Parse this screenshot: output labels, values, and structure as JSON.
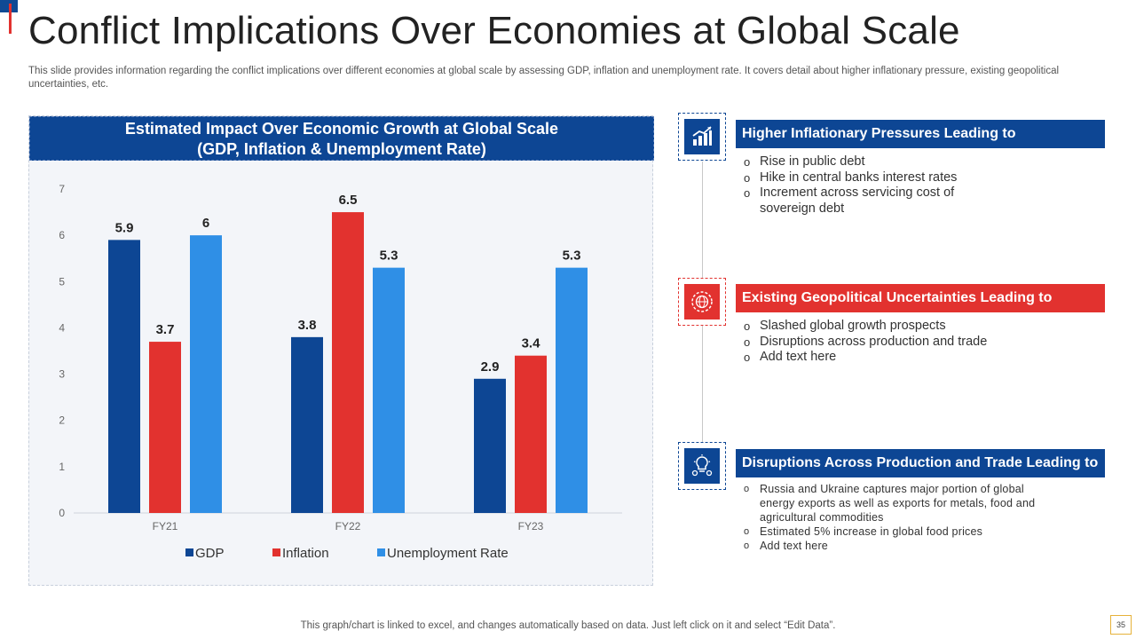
{
  "page": {
    "title": "Conflict Implications Over Economies at Global Scale",
    "subtitle": "This slide provides information regarding the conflict implications over different economies at global scale by assessing GDP, inflation and unemployment rate. It covers detail about higher inflationary pressure, existing geopolitical uncertainties, etc.",
    "footer": "This graph/chart is linked to excel, and changes automatically based on data. Just left click on it and select “Edit Data”.",
    "page_number": "35"
  },
  "chart_header": {
    "line1": "Estimated Impact Over Economic Growth at Global Scale",
    "line2": "(GDP, Inflation & Unemployment Rate)"
  },
  "chart_data": {
    "type": "bar",
    "title": "Estimated Impact Over Economic Growth at Global Scale (GDP, Inflation & Unemployment Rate)",
    "categories": [
      "FY21",
      "FY22",
      "FY23"
    ],
    "series": [
      {
        "name": "GDP",
        "values": [
          5.9,
          3.8,
          2.9
        ],
        "color": "#0d4694"
      },
      {
        "name": "Inflation",
        "values": [
          3.7,
          6.5,
          3.4
        ],
        "color": "#e2322f"
      },
      {
        "name": "Unemployment Rate",
        "values": [
          6,
          5.3,
          5.3
        ],
        "color": "#2f8fe6"
      }
    ],
    "ylim": [
      0,
      7
    ],
    "yticks": [
      "0",
      "1",
      "2",
      "3",
      "4",
      "5",
      "6",
      "7"
    ],
    "xlabel": "",
    "ylabel": "",
    "legend": "bottom"
  },
  "sections": [
    {
      "heading": "Higher Inflationary Pressures Leading to",
      "icon": "bar-chart-icon",
      "bullets": [
        "Rise in public debt",
        "Hike in central banks interest rates",
        "Increment across servicing cost of sovereign debt"
      ]
    },
    {
      "heading": "Existing Geopolitical Uncertainties Leading to",
      "icon": "globe-gear-icon",
      "bullets": [
        "Slashed global growth prospects",
        "Disruptions across production and trade",
        "Add text here"
      ]
    },
    {
      "heading": "Disruptions Across Production and Trade Leading to",
      "icon": "lightbulb-gears-icon",
      "bullets": [
        "Russia and Ukraine captures major portion of global energy exports as well as exports for metals, food and agricultural commodities",
        "Estimated 5% increase in global food prices",
        "Add text here"
      ]
    }
  ],
  "colors": {
    "brand_blue": "#0d4694",
    "accent_red": "#e2322f",
    "light_blue": "#2f8fe6"
  }
}
